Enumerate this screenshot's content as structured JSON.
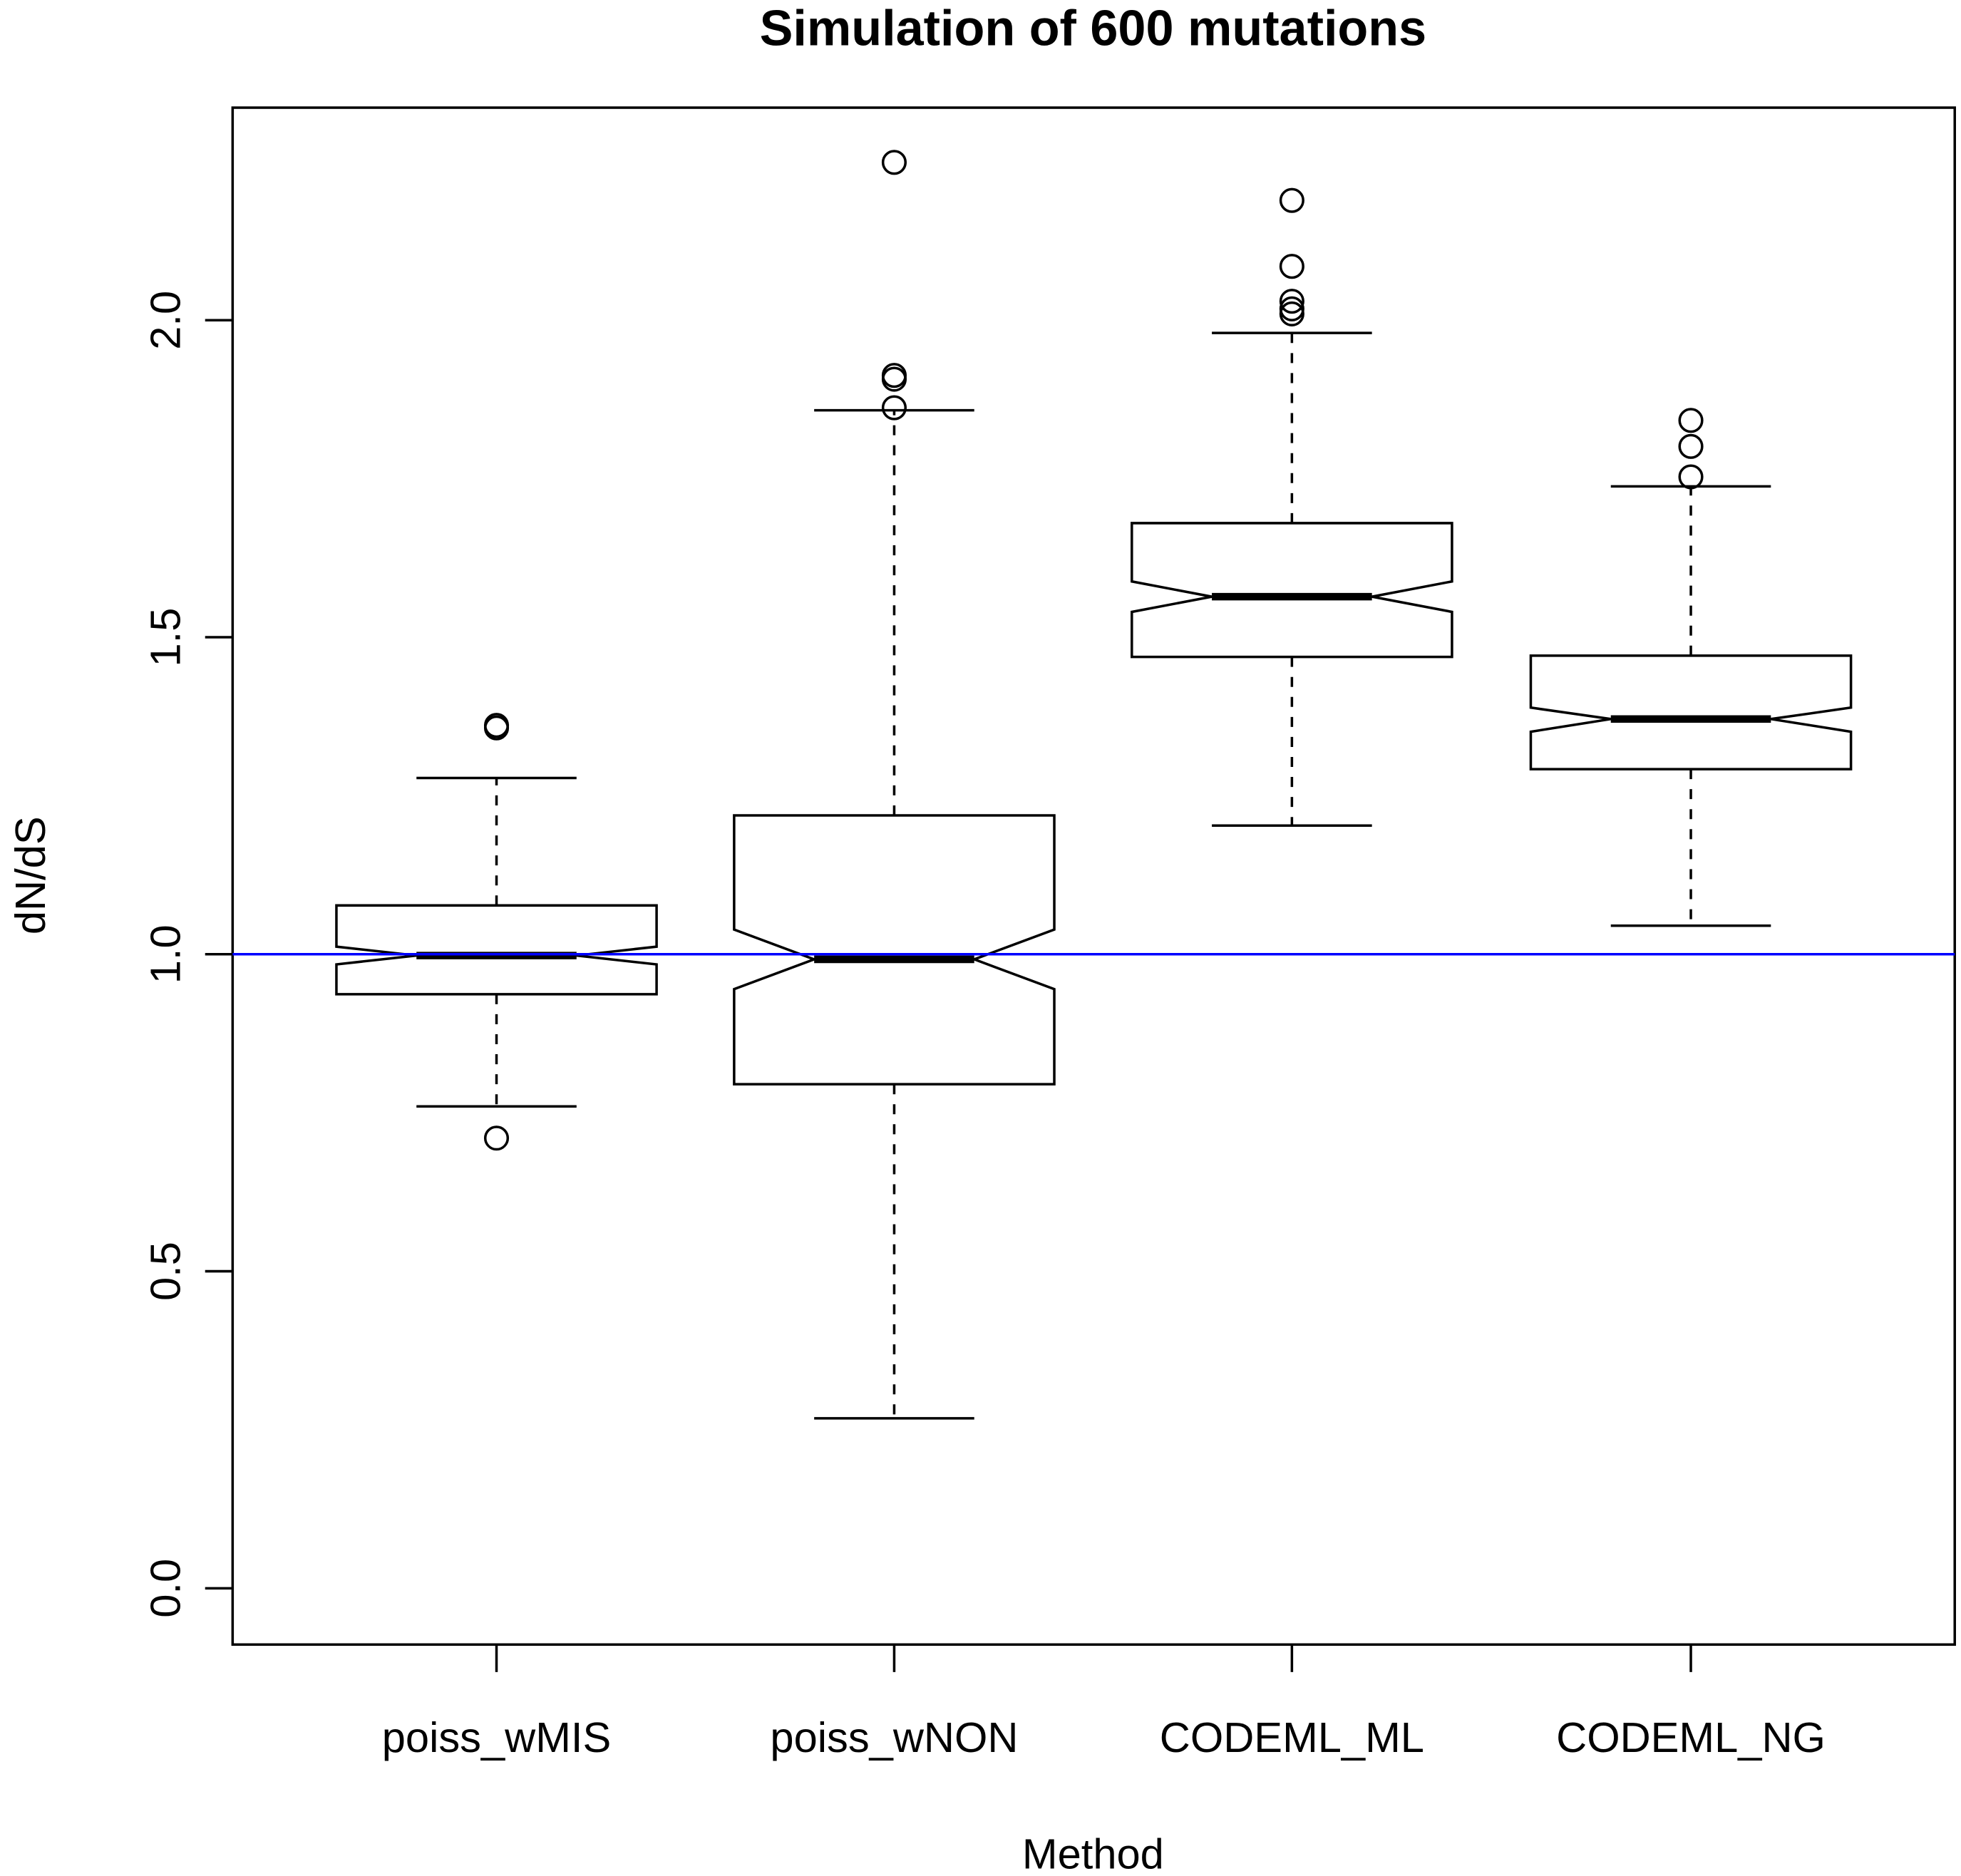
{
  "chart_data": {
    "type": "boxplot",
    "title": "Simulation of 600 mutations",
    "xlabel": "Method",
    "ylabel": "dN/dS",
    "ylim": [
      -0.09,
      2.35
    ],
    "yticks": [
      0.0,
      0.5,
      1.0,
      1.5,
      2.0
    ],
    "ytick_labels": [
      "0.0",
      "0.5",
      "1.0",
      "1.5",
      "2.0"
    ],
    "categories": [
      "poiss_wMIS",
      "poiss_wNON",
      "CODEML_ML",
      "CODEML_NG"
    ],
    "notched": true,
    "reference_line": {
      "y": 1.0,
      "color": "#0000ff"
    },
    "grid": false,
    "series": [
      {
        "name": "poiss_wMIS",
        "whisker_low": 0.76,
        "q1": 0.937,
        "median": 0.998,
        "q3": 1.077,
        "whisker_high": 1.278,
        "notch_low": 0.984,
        "notch_high": 1.012,
        "outliers": [
          1.357,
          1.361,
          0.71
        ]
      },
      {
        "name": "poiss_wNON",
        "whisker_low": 0.268,
        "q1": 0.795,
        "median": 0.992,
        "q3": 1.219,
        "whisker_high": 1.858,
        "notch_low": 0.945,
        "notch_high": 1.039,
        "outliers": [
          2.249,
          1.913,
          1.907,
          1.862
        ]
      },
      {
        "name": "CODEML_ML",
        "whisker_low": 1.203,
        "q1": 1.469,
        "median": 1.564,
        "q3": 1.68,
        "whisker_high": 1.98,
        "notch_low": 1.54,
        "notch_high": 1.588,
        "outliers": [
          2.189,
          2.085,
          2.03,
          2.018,
          2.01
        ]
      },
      {
        "name": "CODEML_NG",
        "whisker_low": 1.045,
        "q1": 1.292,
        "median": 1.371,
        "q3": 1.471,
        "whisker_high": 1.738,
        "notch_low": 1.351,
        "notch_high": 1.389,
        "outliers": [
          1.842,
          1.801,
          1.753
        ]
      }
    ]
  }
}
